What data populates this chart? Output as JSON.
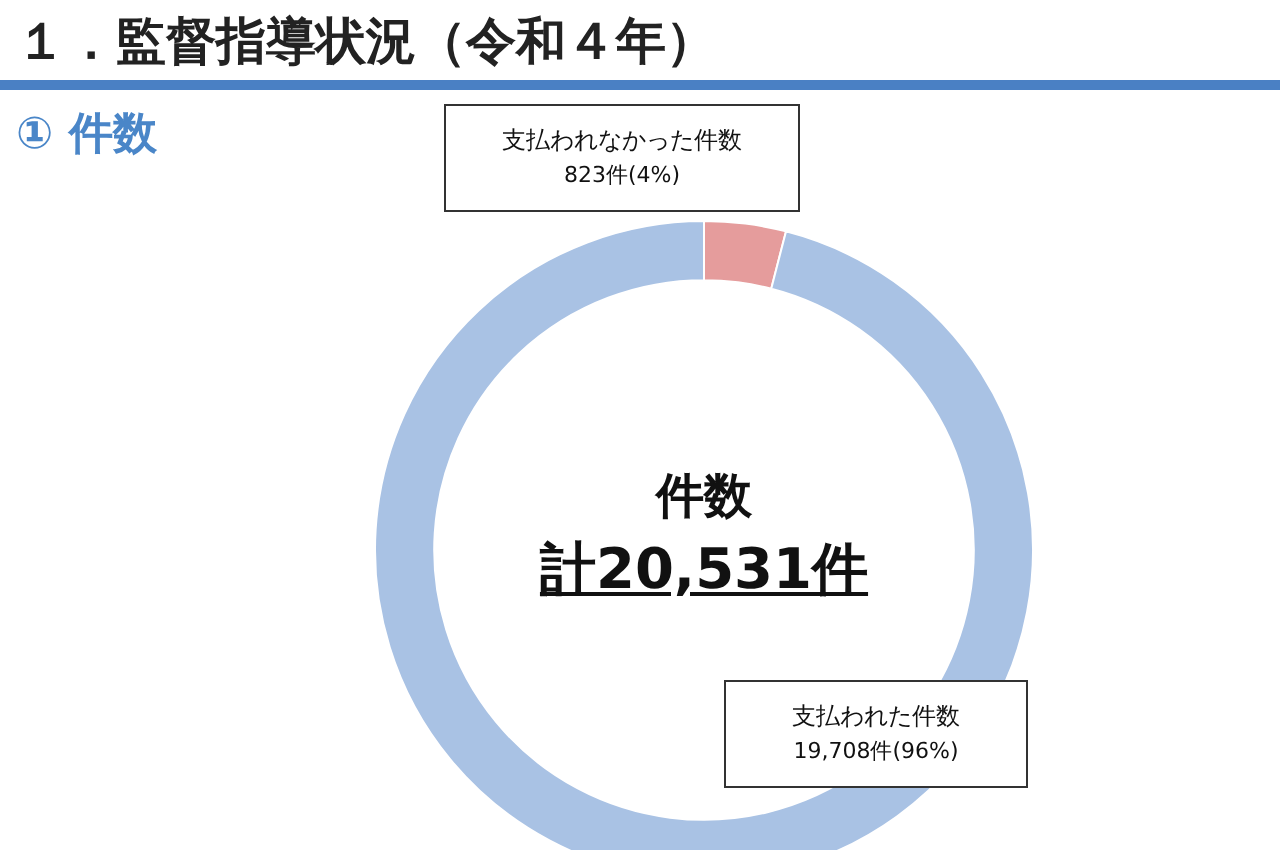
{
  "chart_data": {
    "type": "donut",
    "title": "１．監督指導状況（令和４年）",
    "subtitle": "① 件数",
    "categories": [
      "支払われなかった件数",
      "支払われた件数"
    ],
    "values": [
      823,
      19708
    ],
    "value_labels": [
      "823件(4%)",
      "19,708件(96%)"
    ],
    "colors": [
      "#e59c9c",
      "#a9c2e4"
    ],
    "annotations": [
      "件数",
      "計20,531件"
    ],
    "legend": false
  }
}
